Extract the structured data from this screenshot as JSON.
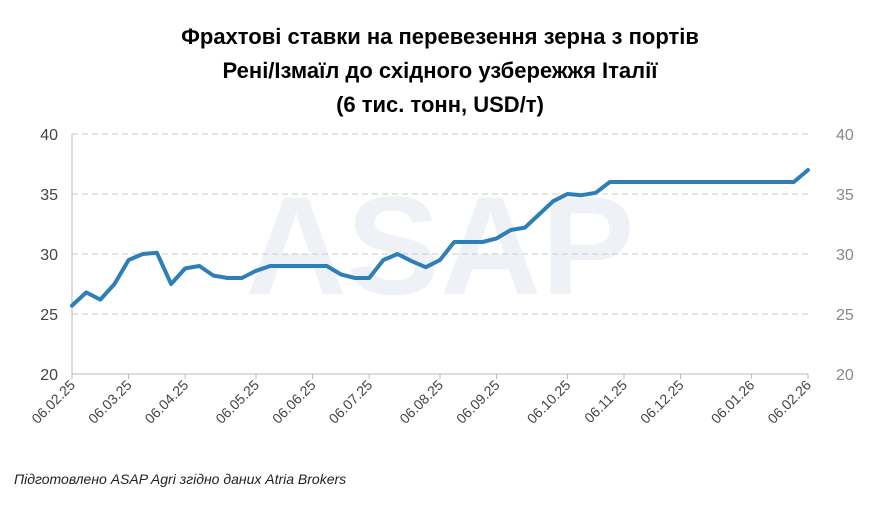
{
  "chart_data": {
    "type": "line",
    "title": [
      "Фрахтові ставки на перевезення зерна з портів",
      "Рені/Ізмаїл до східного узбережжя Італії",
      "(6 тис. тонн, USD/т)"
    ],
    "watermark": "ASAP",
    "footnote": "Підготовлено ASAP Agri згідно даних Atria Brokers",
    "categories": [
      "06.02.25",
      null,
      null,
      null,
      "06.03.25",
      null,
      null,
      null,
      "06.04.25",
      null,
      null,
      null,
      null,
      "06.05.25",
      null,
      null,
      null,
      "06.06.25",
      null,
      null,
      null,
      "06.07.25",
      null,
      null,
      null,
      null,
      "06.08.25",
      null,
      null,
      null,
      "06.09.25",
      null,
      null,
      null,
      null,
      "06.10.25",
      null,
      null,
      null,
      "06.11.25",
      null,
      null,
      null,
      "06.12.25",
      null,
      null,
      null,
      null,
      "06.01.26",
      null,
      null,
      null,
      "06.02.26"
    ],
    "series": [
      {
        "name": "USD/т",
        "color": "#2e7fb8",
        "values": [
          25.7,
          26.8,
          26.2,
          27.5,
          29.5,
          30,
          30.1,
          27.5,
          28.8,
          29,
          28.2,
          28,
          28,
          28.6,
          29,
          29,
          29,
          29,
          29,
          28.3,
          28,
          28,
          29.5,
          30,
          29.4,
          28.9,
          29.5,
          31,
          31,
          31,
          31.3,
          32,
          32.2,
          33.3,
          34.4,
          35,
          34.9,
          35.1,
          36,
          36,
          36,
          36,
          36,
          36,
          36,
          36,
          36,
          36,
          36,
          36,
          36,
          36,
          37
        ]
      }
    ],
    "ylim": [
      20,
      40
    ],
    "yticks": [
      20,
      25,
      30,
      35,
      40
    ],
    "y2lim": [
      20,
      40
    ],
    "y2ticks": [
      20,
      25,
      30,
      35,
      40
    ],
    "grid": true
  }
}
